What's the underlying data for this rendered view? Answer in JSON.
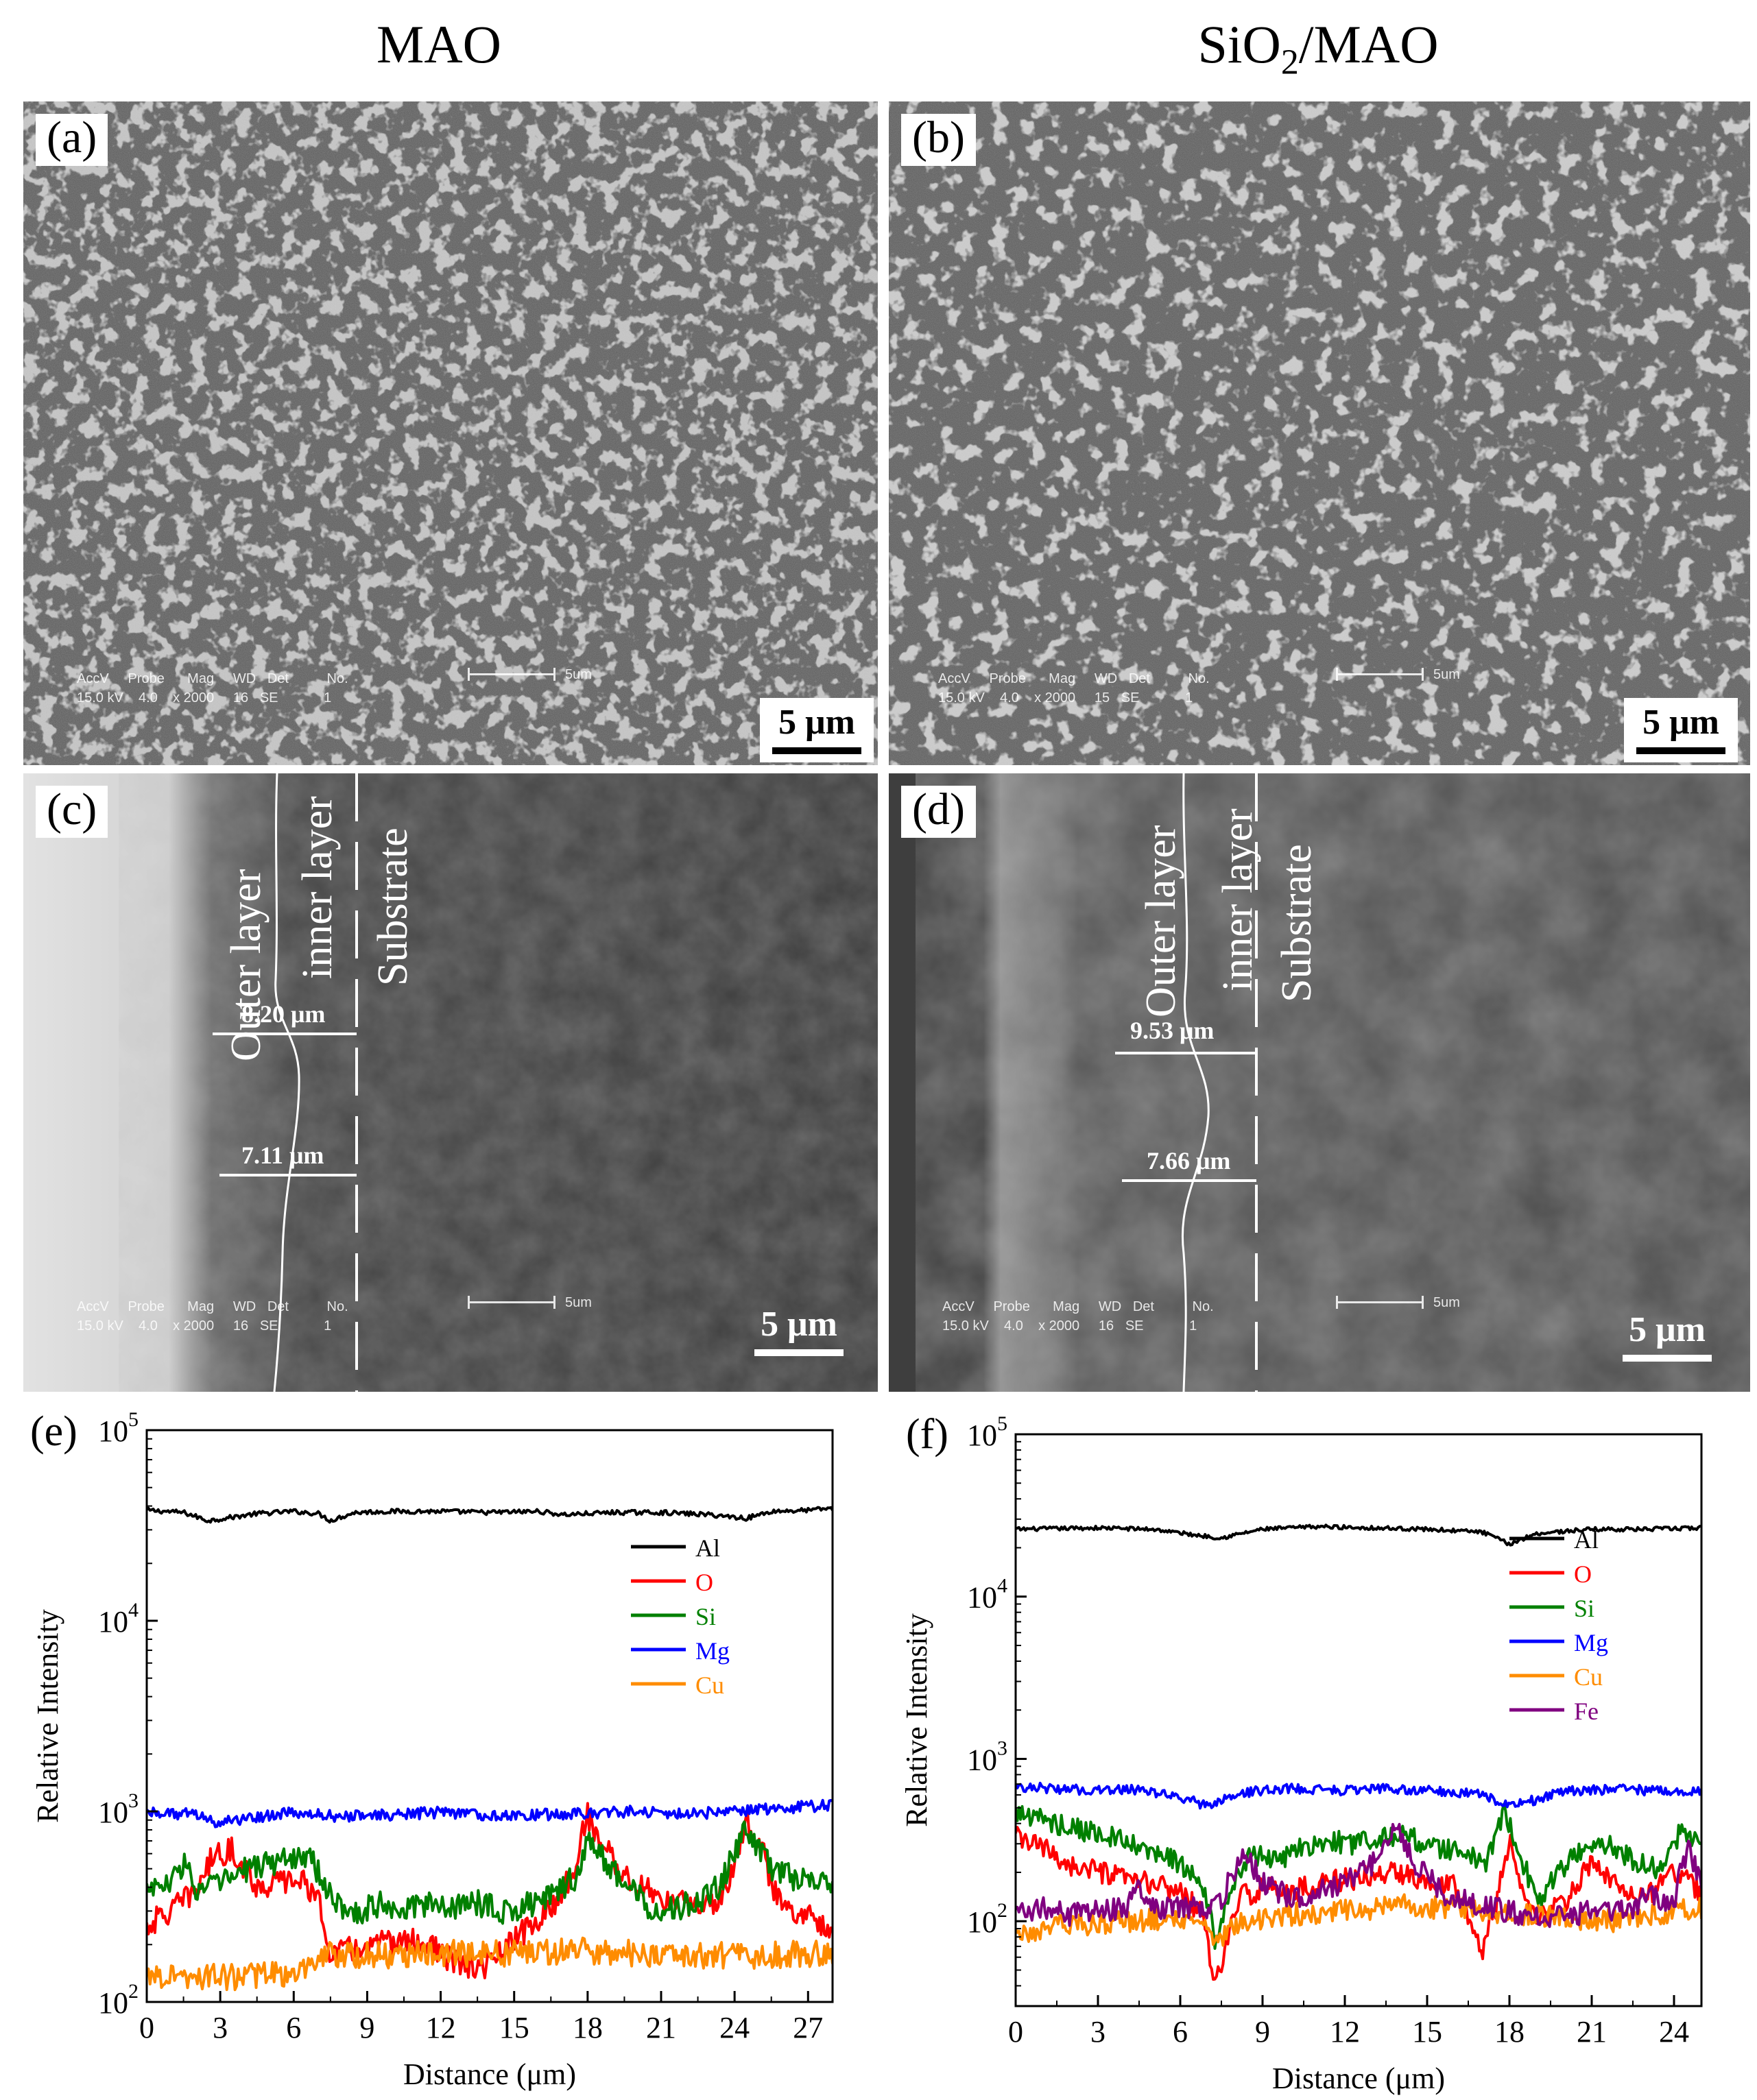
{
  "titles": {
    "left": "MAO",
    "right_main": "SiO",
    "right_sub": "2",
    "right_tail": "/MAO"
  },
  "panels": {
    "a": {
      "label": "(a)",
      "scale": "5 μm"
    },
    "b": {
      "label": "(b)",
      "scale": "5 μm"
    },
    "c": {
      "label": "(c)",
      "scale": "5 μm",
      "outer": "Outer layer",
      "inner": "inner layer",
      "substrate": "Substrate",
      "meas1": "8.20 μm",
      "meas2": "7.11 μm"
    },
    "d": {
      "label": "(d)",
      "scale": "5 μm",
      "outer": "Outer layer",
      "inner": "inner layer",
      "substrate": "Substrate",
      "meas1": "9.53 μm",
      "meas2": "7.66 μm"
    }
  },
  "hud": {
    "header": "AccV     Probe      Mag     WD   Det          No.",
    "a_values": "15.0 kV    4.0    x 2000     16   SE            1",
    "b_values": "15.0 kV    4.0    x 2000     15   SE            1",
    "c_values": "15.0 kV    4.0    x 2000     16   SE            1",
    "d_values": "15.0 kV    4.0    x 2000     16   SE            1",
    "bar_label": "5um"
  },
  "colors": {
    "Al": "#000000",
    "O": "#ff0000",
    "Si": "#008000",
    "Mg": "#0000ff",
    "Cu": "#ff8c00",
    "Fe": "#800080"
  },
  "chart_data": [
    {
      "type": "line",
      "label": "(e)",
      "xlabel": "Distance (μm)",
      "ylabel": "Relative Intensity",
      "yscale": "log",
      "xlim": [
        0,
        28
      ],
      "ylim": [
        100,
        100000
      ],
      "xticks": [
        0,
        3,
        6,
        9,
        12,
        15,
        18,
        21,
        24,
        27
      ],
      "yticks": [
        {
          "value": 100,
          "base": "10",
          "exp": "2"
        },
        {
          "value": 1000,
          "base": "10",
          "exp": "3"
        },
        {
          "value": 10000,
          "base": "10",
          "exp": "4"
        },
        {
          "value": 100000,
          "base": "10",
          "exp": "5"
        }
      ],
      "legend_position": "right",
      "series": [
        {
          "name": "Al",
          "x": [
            0,
            1.5,
            2.5,
            3.2,
            4.5,
            6,
            7,
            7.5,
            8.5,
            10,
            12,
            14,
            16,
            17,
            18,
            19,
            21,
            23,
            24,
            24.5,
            25.5,
            27,
            28
          ],
          "y": [
            38000,
            37000,
            33500,
            34500,
            36500,
            37500,
            36500,
            33500,
            37000,
            37500,
            37500,
            37000,
            37500,
            36000,
            36500,
            37000,
            37000,
            36000,
            35000,
            34500,
            37500,
            38000,
            39000
          ]
        },
        {
          "name": "O",
          "x": [
            0,
            1,
            2,
            2.8,
            3.5,
            4.5,
            5.5,
            6.5,
            7,
            7.5,
            8.5,
            9.5,
            10.5,
            11.5,
            12.5,
            13.5,
            14,
            14.5,
            15.5,
            16.5,
            17.5,
            18,
            18.5,
            19.5,
            20.5,
            21.5,
            22.5,
            23.5,
            24,
            24.5,
            25,
            25.5,
            26,
            27,
            28
          ],
          "y": [
            250,
            300,
            380,
            600,
            620,
            400,
            430,
            430,
            330,
            180,
            190,
            200,
            210,
            200,
            160,
            150,
            160,
            180,
            240,
            300,
            500,
            950,
            700,
            450,
            380,
            330,
            320,
            350,
            550,
            900,
            700,
            400,
            330,
            280,
            250
          ]
        },
        {
          "name": "Si",
          "x": [
            0,
            1,
            1.5,
            2,
            3,
            4.5,
            5.5,
            6.5,
            7.5,
            8.5,
            9.5,
            10.5,
            11.5,
            12.5,
            13.5,
            14.5,
            15.5,
            16.5,
            17.5,
            18,
            18.5,
            19.5,
            20.5,
            21.5,
            22.5,
            23.5,
            24.5,
            25.5,
            26.5,
            28
          ],
          "y": [
            400,
            410,
            550,
            380,
            420,
            520,
            550,
            600,
            350,
            290,
            330,
            310,
            320,
            320,
            330,
            300,
            320,
            350,
            450,
            700,
            580,
            420,
            320,
            310,
            330,
            420,
            800,
            500,
            440,
            420
          ]
        },
        {
          "name": "Mg",
          "x": [
            0,
            2,
            3,
            4,
            6,
            8,
            10,
            12,
            14,
            16,
            18,
            20,
            22,
            24,
            26,
            28
          ],
          "y": [
            1000,
            960,
            870,
            920,
            980,
            940,
            960,
            990,
            950,
            960,
            980,
            1000,
            970,
            1000,
            1040,
            1080
          ]
        },
        {
          "name": "Cu",
          "x": [
            0,
            3,
            6,
            7,
            7.2,
            9,
            12,
            15,
            18,
            21,
            24,
            28
          ],
          "y": [
            140,
            135,
            140,
            150,
            180,
            175,
            180,
            180,
            185,
            178,
            175,
            180
          ]
        }
      ]
    },
    {
      "type": "line",
      "label": "(f)",
      "xlabel": "Distance (μm)",
      "ylabel": "Relative Intensity",
      "yscale": "log",
      "xlim": [
        0,
        25
      ],
      "ylim": [
        30,
        100000
      ],
      "xticks": [
        0,
        3,
        6,
        9,
        12,
        15,
        18,
        21,
        24
      ],
      "yticks": [
        {
          "value": 100,
          "base": "10",
          "exp": "2"
        },
        {
          "value": 1000,
          "base": "10",
          "exp": "3"
        },
        {
          "value": 10000,
          "base": "10",
          "exp": "4"
        },
        {
          "value": 100000,
          "base": "10",
          "exp": "5"
        }
      ],
      "legend_position": "right",
      "series": [
        {
          "name": "Al",
          "x": [
            0,
            3,
            5,
            6.5,
            7.5,
            9,
            11,
            13,
            15,
            17,
            18,
            19,
            21,
            23,
            25
          ],
          "y": [
            26000,
            26500,
            26000,
            24000,
            23000,
            26000,
            27000,
            26500,
            26000,
            25000,
            21000,
            24500,
            26000,
            26000,
            26500
          ]
        },
        {
          "name": "O",
          "x": [
            0,
            1,
            2,
            3,
            4,
            5,
            6,
            6.8,
            7.2,
            7.6,
            8.2,
            9,
            10,
            11,
            12,
            13,
            14,
            15,
            16,
            16.5,
            17,
            17.5,
            18,
            18.5,
            19,
            20,
            21,
            22,
            23,
            24,
            25
          ],
          "y": [
            330,
            280,
            220,
            200,
            180,
            170,
            150,
            110,
            40,
            60,
            140,
            160,
            150,
            170,
            180,
            190,
            200,
            180,
            170,
            110,
            60,
            120,
            300,
            150,
            100,
            130,
            220,
            160,
            140,
            200,
            150
          ]
        },
        {
          "name": "Si",
          "x": [
            0,
            1,
            2,
            3,
            4,
            5,
            6,
            6.8,
            7.3,
            7.8,
            8.5,
            9.5,
            10.5,
            11.5,
            12.5,
            13.5,
            14.5,
            15.5,
            16.5,
            17.2,
            17.8,
            18.4,
            19,
            19.5,
            20.5,
            21.5,
            22.5,
            23.5,
            24.3,
            25
          ],
          "y": [
            470,
            420,
            380,
            350,
            300,
            260,
            230,
            160,
            70,
            140,
            250,
            240,
            280,
            310,
            300,
            350,
            320,
            280,
            260,
            220,
            480,
            250,
            120,
            170,
            270,
            300,
            240,
            200,
            370,
            300
          ]
        },
        {
          "name": "Mg",
          "x": [
            0,
            1,
            2,
            3,
            4,
            5,
            6,
            7,
            8,
            9,
            10,
            11,
            12,
            13,
            14,
            15,
            16,
            17,
            18,
            19,
            20,
            21,
            22,
            23,
            24,
            25
          ],
          "y": [
            680,
            660,
            650,
            640,
            650,
            620,
            580,
            510,
            600,
            640,
            660,
            650,
            640,
            660,
            650,
            640,
            620,
            600,
            520,
            560,
            630,
            640,
            650,
            640,
            620,
            630
          ]
        },
        {
          "name": "Cu",
          "x": [
            0,
            2,
            4,
            6,
            7,
            7.5,
            8,
            10,
            12,
            14,
            16,
            18,
            20,
            22,
            24,
            25
          ],
          "y": [
            85,
            95,
            100,
            105,
            90,
            75,
            95,
            110,
            115,
            125,
            120,
            110,
            105,
            100,
            115,
            120
          ]
        },
        {
          "name": "Fe",
          "x": [
            0,
            1,
            2,
            3,
            4,
            4.5,
            5,
            6,
            7,
            7.5,
            8.3,
            9,
            10,
            11,
            12,
            13,
            13.8,
            14.5,
            15.5,
            16.5,
            17.5,
            18.5,
            19.5,
            20.5,
            21.5,
            22.5,
            23,
            24,
            24.5,
            25
          ],
          "y": [
            115,
            120,
            110,
            115,
            120,
            170,
            120,
            120,
            120,
            130,
            260,
            170,
            140,
            150,
            170,
            220,
            380,
            230,
            150,
            130,
            120,
            110,
            105,
            110,
            120,
            110,
            150,
            120,
            280,
            170
          ]
        }
      ]
    }
  ]
}
